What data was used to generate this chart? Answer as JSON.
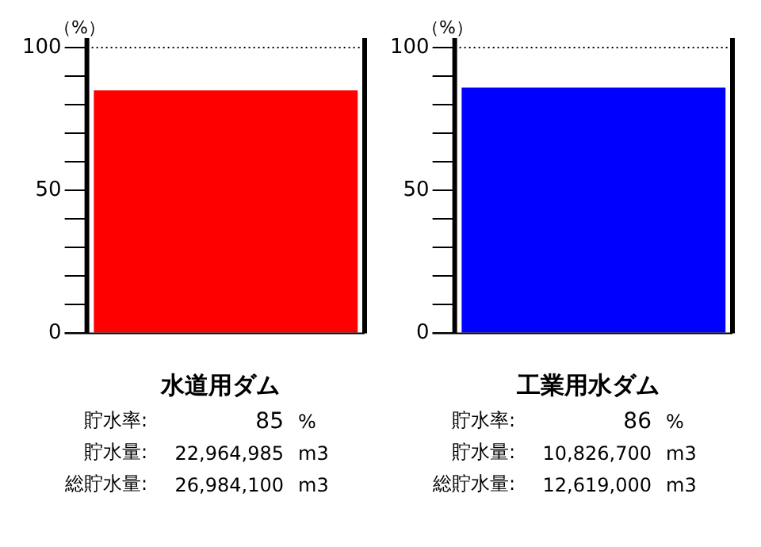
{
  "chart_data": [
    {
      "type": "bar",
      "title": "水道用ダム",
      "ylabel": "（%）",
      "categories": [
        null
      ],
      "values": [
        85
      ],
      "color": "#ff0000",
      "ylim": [
        0,
        100
      ],
      "yticks": [
        0,
        {
          "value": 10,
          "label": null
        },
        {
          "value": 20,
          "label": null
        },
        {
          "value": 30,
          "label": null
        },
        {
          "value": 40,
          "label": null
        },
        50,
        {
          "value": 60,
          "label": null
        },
        {
          "value": 70,
          "label": null
        },
        {
          "value": 80,
          "label": null
        },
        {
          "value": 90,
          "label": null
        },
        100
      ],
      "ref_lines": [
        {
          "axis": "y",
          "value": 100,
          "line_style": "dotted",
          "color": "#000000"
        }
      ],
      "grid": false,
      "legend": false,
      "annotations": [
        "貯水率:",
        "85",
        "%",
        "貯水量:",
        "22,964,985",
        "m3",
        "総貯水量:",
        "26,984,100",
        "m3"
      ]
    },
    {
      "type": "bar",
      "title": "工業用水ダム",
      "ylabel": "（%）",
      "categories": [
        null
      ],
      "values": [
        86
      ],
      "color": "#0000ff",
      "ylim": [
        0,
        100
      ],
      "yticks": [
        0,
        {
          "value": 10,
          "label": null
        },
        {
          "value": 20,
          "label": null
        },
        {
          "value": 30,
          "label": null
        },
        {
          "value": 40,
          "label": null
        },
        50,
        {
          "value": 60,
          "label": null
        },
        {
          "value": 70,
          "label": null
        },
        {
          "value": 80,
          "label": null
        },
        {
          "value": 90,
          "label": null
        },
        100
      ],
      "ref_lines": [
        {
          "axis": "y",
          "value": 100,
          "line_style": "dotted",
          "color": "#000000"
        }
      ],
      "grid": false,
      "legend": false,
      "annotations": [
        "貯水率:",
        "86",
        "%",
        "貯水量:",
        "10,826,700",
        "m3",
        "総貯水量:",
        "12,619,000",
        "m3"
      ]
    }
  ]
}
